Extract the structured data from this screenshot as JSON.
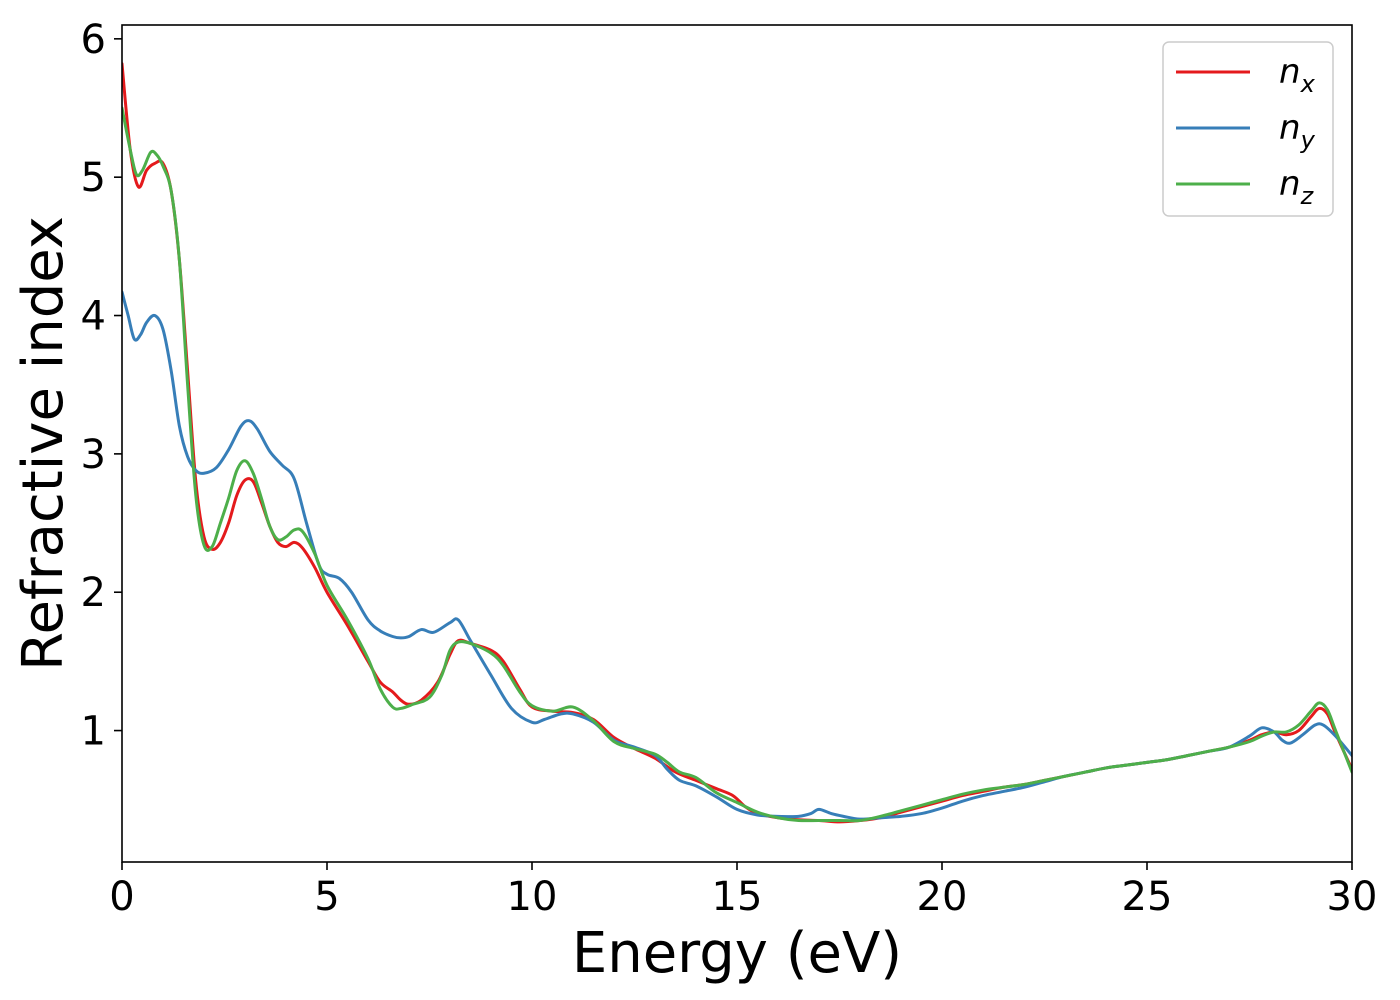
{
  "chart_data": {
    "type": "line",
    "title": "",
    "xlabel": "Energy (eV)",
    "ylabel": "Refractive index",
    "xlim": [
      0,
      30
    ],
    "ylim": [
      0.05,
      6.1
    ],
    "xticks": [
      0,
      5,
      10,
      15,
      20,
      25,
      30
    ],
    "xtick_labels": [
      "0",
      "5",
      "10",
      "15",
      "20",
      "25",
      "30"
    ],
    "yticks": [
      1,
      2,
      3,
      4,
      5,
      6
    ],
    "ytick_labels": [
      "1",
      "2",
      "3",
      "4",
      "5",
      "6"
    ],
    "grid": false,
    "legend_position": "top-right",
    "series": [
      {
        "name": "n",
        "subscript": "x",
        "color": "#e41a1c",
        "points": [
          [
            0,
            5.82
          ],
          [
            0.2,
            5.2
          ],
          [
            0.4,
            4.93
          ],
          [
            0.6,
            5.05
          ],
          [
            0.8,
            5.1
          ],
          [
            1.0,
            5.1
          ],
          [
            1.2,
            4.9
          ],
          [
            1.4,
            4.4
          ],
          [
            1.6,
            3.6
          ],
          [
            1.8,
            2.8
          ],
          [
            2.0,
            2.4
          ],
          [
            2.2,
            2.31
          ],
          [
            2.4,
            2.36
          ],
          [
            2.6,
            2.5
          ],
          [
            2.8,
            2.7
          ],
          [
            3.0,
            2.81
          ],
          [
            3.2,
            2.8
          ],
          [
            3.4,
            2.65
          ],
          [
            3.6,
            2.48
          ],
          [
            3.8,
            2.36
          ],
          [
            4.0,
            2.33
          ],
          [
            4.2,
            2.36
          ],
          [
            4.4,
            2.32
          ],
          [
            4.7,
            2.18
          ],
          [
            5.0,
            2.0
          ],
          [
            5.5,
            1.76
          ],
          [
            6.0,
            1.5
          ],
          [
            6.3,
            1.35
          ],
          [
            6.6,
            1.28
          ],
          [
            6.8,
            1.22
          ],
          [
            7.0,
            1.19
          ],
          [
            7.3,
            1.22
          ],
          [
            7.7,
            1.35
          ],
          [
            8.0,
            1.55
          ],
          [
            8.2,
            1.65
          ],
          [
            8.5,
            1.63
          ],
          [
            9.0,
            1.58
          ],
          [
            9.3,
            1.5
          ],
          [
            9.7,
            1.3
          ],
          [
            10.0,
            1.17
          ],
          [
            10.5,
            1.14
          ],
          [
            11.0,
            1.13
          ],
          [
            11.5,
            1.08
          ],
          [
            12.0,
            0.95
          ],
          [
            12.5,
            0.87
          ],
          [
            13.0,
            0.8
          ],
          [
            13.5,
            0.7
          ],
          [
            14.0,
            0.64
          ],
          [
            14.5,
            0.58
          ],
          [
            14.9,
            0.53
          ],
          [
            15.2,
            0.45
          ],
          [
            15.5,
            0.4
          ],
          [
            16.0,
            0.37
          ],
          [
            16.5,
            0.355
          ],
          [
            17.0,
            0.35
          ],
          [
            17.5,
            0.34
          ],
          [
            18.0,
            0.35
          ],
          [
            18.5,
            0.37
          ],
          [
            19.0,
            0.41
          ],
          [
            19.5,
            0.45
          ],
          [
            20.0,
            0.49
          ],
          [
            20.5,
            0.53
          ],
          [
            21.0,
            0.56
          ],
          [
            21.5,
            0.59
          ],
          [
            22.0,
            0.61
          ],
          [
            22.5,
            0.64
          ],
          [
            23.0,
            0.67
          ],
          [
            23.5,
            0.7
          ],
          [
            24.0,
            0.73
          ],
          [
            24.5,
            0.75
          ],
          [
            25.0,
            0.77
          ],
          [
            25.5,
            0.79
          ],
          [
            26.0,
            0.82
          ],
          [
            26.5,
            0.85
          ],
          [
            27.0,
            0.88
          ],
          [
            27.5,
            0.93
          ],
          [
            27.8,
            0.97
          ],
          [
            28.1,
            0.99
          ],
          [
            28.4,
            0.97
          ],
          [
            28.7,
            1.0
          ],
          [
            29.0,
            1.1
          ],
          [
            29.2,
            1.16
          ],
          [
            29.4,
            1.12
          ],
          [
            29.6,
            0.98
          ],
          [
            30.0,
            0.72
          ]
        ]
      },
      {
        "name": "n",
        "subscript": "y",
        "color": "#377eb8",
        "points": [
          [
            0,
            4.17
          ],
          [
            0.15,
            4.0
          ],
          [
            0.3,
            3.83
          ],
          [
            0.45,
            3.86
          ],
          [
            0.6,
            3.95
          ],
          [
            0.8,
            4.0
          ],
          [
            1.0,
            3.9
          ],
          [
            1.2,
            3.6
          ],
          [
            1.4,
            3.2
          ],
          [
            1.6,
            2.98
          ],
          [
            1.8,
            2.88
          ],
          [
            2.0,
            2.86
          ],
          [
            2.3,
            2.9
          ],
          [
            2.6,
            3.03
          ],
          [
            2.9,
            3.2
          ],
          [
            3.1,
            3.24
          ],
          [
            3.3,
            3.18
          ],
          [
            3.6,
            3.02
          ],
          [
            3.9,
            2.92
          ],
          [
            4.2,
            2.82
          ],
          [
            4.5,
            2.5
          ],
          [
            4.8,
            2.2
          ],
          [
            5.0,
            2.13
          ],
          [
            5.3,
            2.1
          ],
          [
            5.6,
            2.0
          ],
          [
            6.0,
            1.8
          ],
          [
            6.3,
            1.72
          ],
          [
            6.6,
            1.68
          ],
          [
            6.8,
            1.67
          ],
          [
            7.0,
            1.68
          ],
          [
            7.3,
            1.73
          ],
          [
            7.6,
            1.71
          ],
          [
            8.0,
            1.78
          ],
          [
            8.2,
            1.8
          ],
          [
            8.5,
            1.65
          ],
          [
            9.0,
            1.4
          ],
          [
            9.5,
            1.16
          ],
          [
            10.0,
            1.06
          ],
          [
            10.3,
            1.08
          ],
          [
            10.7,
            1.12
          ],
          [
            11.0,
            1.12
          ],
          [
            11.5,
            1.06
          ],
          [
            12.0,
            0.93
          ],
          [
            12.5,
            0.88
          ],
          [
            13.0,
            0.82
          ],
          [
            13.3,
            0.72
          ],
          [
            13.6,
            0.64
          ],
          [
            14.0,
            0.6
          ],
          [
            14.5,
            0.52
          ],
          [
            15.0,
            0.43
          ],
          [
            15.5,
            0.39
          ],
          [
            16.0,
            0.38
          ],
          [
            16.5,
            0.38
          ],
          [
            16.8,
            0.4
          ],
          [
            17.0,
            0.43
          ],
          [
            17.3,
            0.4
          ],
          [
            17.6,
            0.38
          ],
          [
            18.0,
            0.36
          ],
          [
            18.5,
            0.37
          ],
          [
            19.0,
            0.38
          ],
          [
            19.5,
            0.4
          ],
          [
            20.0,
            0.44
          ],
          [
            20.5,
            0.49
          ],
          [
            21.0,
            0.53
          ],
          [
            21.5,
            0.56
          ],
          [
            22.0,
            0.59
          ],
          [
            22.5,
            0.63
          ],
          [
            23.0,
            0.67
          ],
          [
            23.5,
            0.7
          ],
          [
            24.0,
            0.73
          ],
          [
            24.5,
            0.75
          ],
          [
            25.0,
            0.77
          ],
          [
            25.5,
            0.79
          ],
          [
            26.0,
            0.82
          ],
          [
            26.5,
            0.85
          ],
          [
            27.0,
            0.88
          ],
          [
            27.5,
            0.96
          ],
          [
            27.8,
            1.02
          ],
          [
            28.1,
            0.99
          ],
          [
            28.3,
            0.93
          ],
          [
            28.5,
            0.91
          ],
          [
            28.8,
            0.97
          ],
          [
            29.1,
            1.04
          ],
          [
            29.3,
            1.04
          ],
          [
            29.6,
            0.96
          ],
          [
            30.0,
            0.82
          ]
        ]
      },
      {
        "name": "n",
        "subscript": "z",
        "color": "#4daf4a",
        "points": [
          [
            0,
            5.5
          ],
          [
            0.2,
            5.2
          ],
          [
            0.35,
            5.02
          ],
          [
            0.5,
            5.05
          ],
          [
            0.7,
            5.18
          ],
          [
            0.85,
            5.16
          ],
          [
            1.0,
            5.08
          ],
          [
            1.2,
            4.9
          ],
          [
            1.4,
            4.4
          ],
          [
            1.6,
            3.5
          ],
          [
            1.8,
            2.7
          ],
          [
            2.0,
            2.34
          ],
          [
            2.2,
            2.33
          ],
          [
            2.4,
            2.5
          ],
          [
            2.6,
            2.68
          ],
          [
            2.8,
            2.88
          ],
          [
            3.0,
            2.95
          ],
          [
            3.2,
            2.86
          ],
          [
            3.4,
            2.68
          ],
          [
            3.6,
            2.48
          ],
          [
            3.8,
            2.38
          ],
          [
            4.0,
            2.4
          ],
          [
            4.2,
            2.45
          ],
          [
            4.4,
            2.44
          ],
          [
            4.7,
            2.28
          ],
          [
            5.0,
            2.05
          ],
          [
            5.5,
            1.8
          ],
          [
            6.0,
            1.52
          ],
          [
            6.3,
            1.3
          ],
          [
            6.6,
            1.17
          ],
          [
            6.8,
            1.16
          ],
          [
            7.1,
            1.19
          ],
          [
            7.5,
            1.24
          ],
          [
            7.8,
            1.4
          ],
          [
            8.0,
            1.58
          ],
          [
            8.2,
            1.64
          ],
          [
            8.5,
            1.63
          ],
          [
            9.0,
            1.56
          ],
          [
            9.3,
            1.47
          ],
          [
            9.7,
            1.28
          ],
          [
            10.0,
            1.18
          ],
          [
            10.5,
            1.14
          ],
          [
            11.0,
            1.17
          ],
          [
            11.5,
            1.07
          ],
          [
            12.0,
            0.92
          ],
          [
            12.5,
            0.87
          ],
          [
            13.0,
            0.83
          ],
          [
            13.3,
            0.77
          ],
          [
            13.6,
            0.7
          ],
          [
            14.0,
            0.66
          ],
          [
            14.5,
            0.55
          ],
          [
            15.0,
            0.48
          ],
          [
            15.5,
            0.41
          ],
          [
            16.0,
            0.37
          ],
          [
            16.5,
            0.35
          ],
          [
            17.0,
            0.35
          ],
          [
            17.5,
            0.35
          ],
          [
            18.0,
            0.35
          ],
          [
            18.5,
            0.38
          ],
          [
            19.0,
            0.42
          ],
          [
            19.5,
            0.46
          ],
          [
            20.0,
            0.5
          ],
          [
            20.5,
            0.54
          ],
          [
            21.0,
            0.57
          ],
          [
            21.5,
            0.59
          ],
          [
            22.0,
            0.61
          ],
          [
            22.5,
            0.64
          ],
          [
            23.0,
            0.67
          ],
          [
            23.5,
            0.7
          ],
          [
            24.0,
            0.73
          ],
          [
            24.5,
            0.75
          ],
          [
            25.0,
            0.77
          ],
          [
            25.5,
            0.79
          ],
          [
            26.0,
            0.82
          ],
          [
            26.5,
            0.85
          ],
          [
            27.0,
            0.88
          ],
          [
            27.5,
            0.92
          ],
          [
            27.8,
            0.96
          ],
          [
            28.1,
            0.99
          ],
          [
            28.4,
            0.99
          ],
          [
            28.7,
            1.04
          ],
          [
            29.0,
            1.14
          ],
          [
            29.2,
            1.2
          ],
          [
            29.4,
            1.15
          ],
          [
            29.6,
            1.0
          ],
          [
            30.0,
            0.7
          ]
        ]
      }
    ]
  }
}
